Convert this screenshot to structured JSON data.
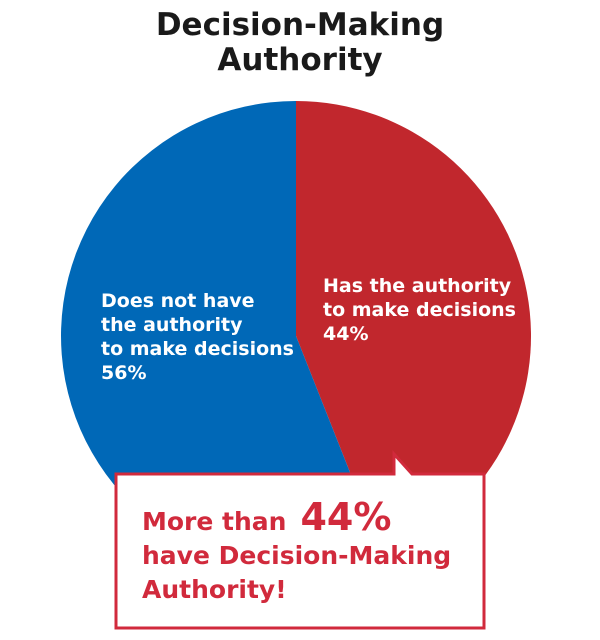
{
  "chart_data": {
    "type": "pie",
    "title_lines": [
      "Decision-Making",
      "Authority"
    ],
    "slices": [
      {
        "label_lines": [
          "Has the authority",
          "to make decisions"
        ],
        "percent_label": "44%",
        "value": 44,
        "color": "#c1272d"
      },
      {
        "label_lines": [
          "Does not have",
          "the authority",
          "to make decisions"
        ],
        "percent_label": "56%",
        "value": 56,
        "color": "#0068b7"
      }
    ],
    "callout": {
      "prefix": "More than",
      "highlight": "44%",
      "lines": [
        "have Decision-Making",
        "Authority!"
      ],
      "color": "#d12a3c"
    }
  }
}
